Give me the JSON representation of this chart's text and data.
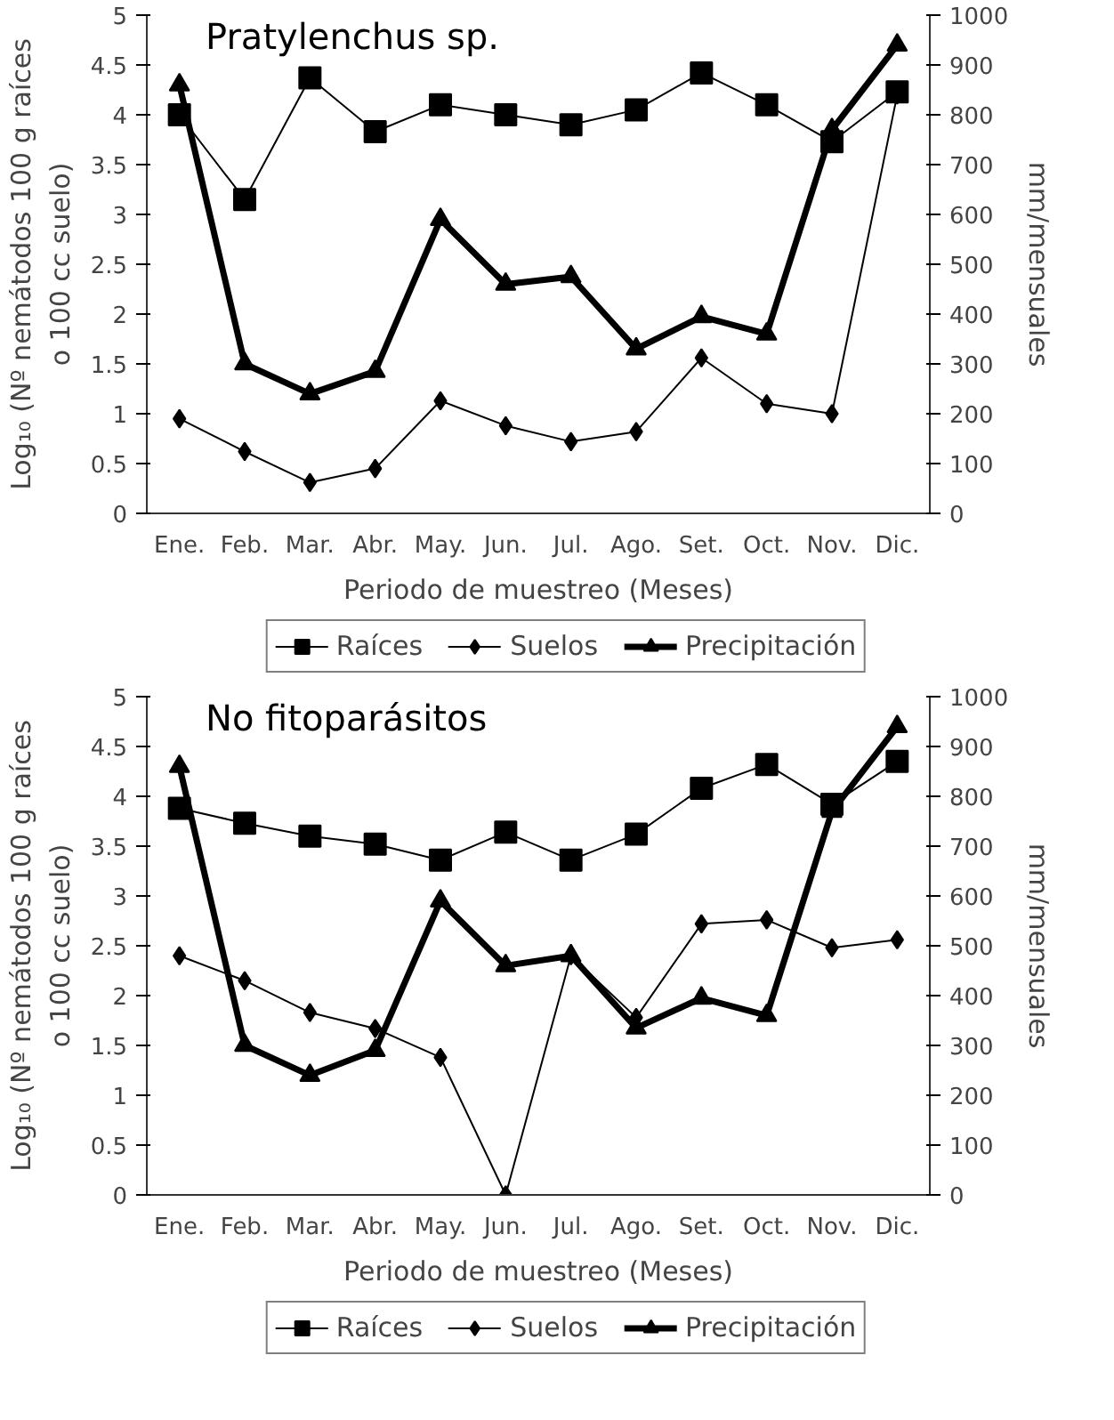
{
  "chart_data": [
    {
      "type": "line",
      "title": "Pratylenchus sp.",
      "xlabel": "Periodo de muestreo (Meses)",
      "ylabel": "Log₁₀ (Nº nemátodos 100 g raíces\no 100 cc suelo)",
      "y2label": "mm/mensuales",
      "categories": [
        "Ene.",
        "Feb.",
        "Mar.",
        "Abr.",
        "May.",
        "Jun.",
        "Jul.",
        "Ago.",
        "Set.",
        "Oct.",
        "Nov.",
        "Dic."
      ],
      "ylim": [
        0,
        5
      ],
      "yticks": [
        0,
        0.5,
        1,
        1.5,
        2,
        2.5,
        3,
        3.5,
        4,
        4.5,
        5
      ],
      "y2lim": [
        0,
        1000
      ],
      "y2ticks": [
        0,
        100,
        200,
        300,
        400,
        500,
        600,
        700,
        800,
        900,
        1000
      ],
      "legend": "bottom",
      "grid": false,
      "series": [
        {
          "name": "Raíces",
          "color": "#000000",
          "marker": "square",
          "values": [
            4.0,
            3.15,
            4.37,
            3.83,
            4.1,
            4.0,
            3.9,
            4.05,
            4.42,
            4.1,
            3.73,
            4.23
          ]
        },
        {
          "name": "Suelos",
          "color": "#000000",
          "marker": "diamond",
          "values": [
            0.95,
            0.62,
            0.31,
            0.45,
            1.13,
            0.88,
            0.72,
            0.82,
            1.56,
            1.1,
            1.0,
            4.2
          ]
        },
        {
          "name": "Precipitación",
          "color": "#000000",
          "marker": "triangle",
          "axis": "y2",
          "values": [
            860,
            300,
            240,
            285,
            590,
            460,
            475,
            330,
            395,
            360,
            770,
            940
          ]
        }
      ]
    },
    {
      "type": "line",
      "title": "No fitoparásitos",
      "xlabel": "Periodo de muestreo (Meses)",
      "ylabel": "Log₁₀ (Nº nemátodos 100 g raíces\no 100 cc suelo)",
      "y2label": "mm/mensuales",
      "categories": [
        "Ene.",
        "Feb.",
        "Mar.",
        "Abr.",
        "May.",
        "Jun.",
        "Jul.",
        "Ago.",
        "Set.",
        "Oct.",
        "Nov.",
        "Dic."
      ],
      "ylim": [
        0,
        5
      ],
      "yticks": [
        0,
        0.5,
        1,
        1.5,
        2,
        2.5,
        3,
        3.5,
        4,
        4.5,
        5
      ],
      "y2lim": [
        0,
        1000
      ],
      "y2ticks": [
        0,
        100,
        200,
        300,
        400,
        500,
        600,
        700,
        800,
        900,
        1000
      ],
      "legend": "bottom",
      "grid": false,
      "series": [
        {
          "name": "Raíces",
          "color": "#000000",
          "marker": "square",
          "values": [
            3.88,
            3.73,
            3.6,
            3.52,
            3.36,
            3.64,
            3.36,
            3.62,
            4.08,
            4.32,
            3.92,
            4.35
          ]
        },
        {
          "name": "Suelos",
          "color": "#000000",
          "marker": "diamond",
          "values": [
            2.4,
            2.15,
            1.83,
            1.67,
            1.38,
            0,
            2.4,
            1.78,
            2.72,
            2.76,
            2.48,
            2.56
          ]
        },
        {
          "name": "Precipitación",
          "color": "#000000",
          "marker": "triangle",
          "axis": "y2",
          "values": [
            860,
            300,
            240,
            290,
            590,
            460,
            480,
            335,
            395,
            360,
            770,
            940
          ]
        }
      ]
    }
  ]
}
